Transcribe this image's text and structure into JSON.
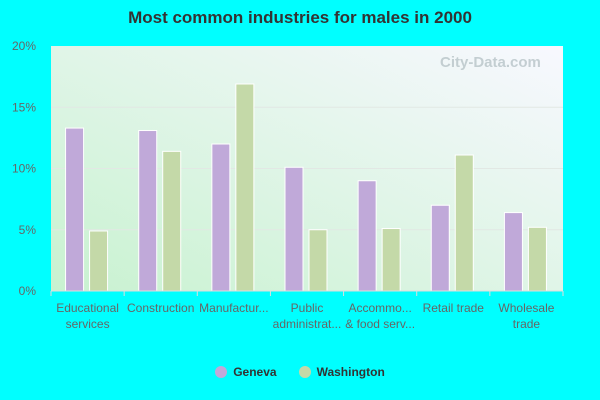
{
  "chart_data": {
    "type": "bar",
    "title": "Most common industries for males in 2000",
    "categories": [
      [
        "Educational",
        "services"
      ],
      [
        "Construction"
      ],
      [
        "Manufactur..."
      ],
      [
        "Public",
        "administrat..."
      ],
      [
        "Accommo...",
        "& food serv..."
      ],
      [
        "Retail trade"
      ],
      [
        "Wholesale",
        "trade"
      ]
    ],
    "series": [
      {
        "name": "Geneva",
        "color": "#c0a9d9",
        "values": [
          13.3,
          13.1,
          12.0,
          10.1,
          9.0,
          7.0,
          6.4
        ]
      },
      {
        "name": "Washington",
        "color": "#c4d9a8",
        "values": [
          4.9,
          11.4,
          16.9,
          5.0,
          5.1,
          11.1,
          5.2
        ]
      }
    ],
    "yticks": [
      "0%",
      "5%",
      "10%",
      "15%",
      "20%"
    ],
    "ylim": [
      0,
      20
    ],
    "grid": true,
    "legend": "bottom",
    "watermark": "City-Data.com"
  }
}
